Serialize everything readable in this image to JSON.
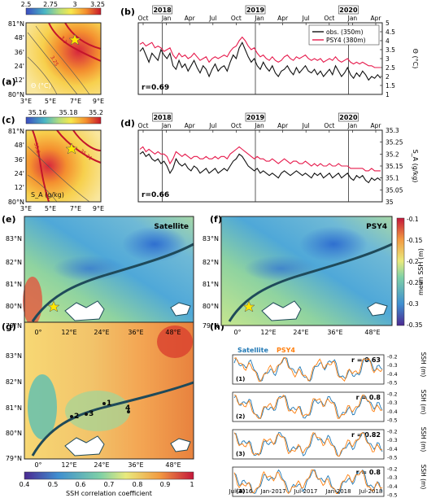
{
  "colors": {
    "obs": "#111111",
    "psy4": "#e6194b",
    "satellite": "#1f77b4",
    "psy4_ts": "#ff7f0e",
    "coast": "#1f4a5a"
  },
  "panel_letters": [
    "(a)",
    "(b)",
    "(c)",
    "(d)",
    "(e)",
    "(f)",
    "(g)",
    "(h)"
  ],
  "map_a": {
    "colorbar_ticks": [
      "2.5",
      "2.75",
      "3",
      "3.25"
    ],
    "lat_ticks": [
      "81°N",
      "48'",
      "36'",
      "24'",
      "12'",
      "80°N"
    ],
    "lon_ticks": [
      "3°E",
      "5°E",
      "7°E",
      "9°E"
    ],
    "var_label": "Θ (°C)",
    "contour_labels": [
      "3.25",
      "3.3"
    ]
  },
  "map_c": {
    "colorbar_ticks": [
      "35.16",
      "35.18",
      "35.2"
    ],
    "lat_ticks": [
      "81°N",
      "48'",
      "36'",
      "24'",
      "12'",
      "80°N"
    ],
    "lon_ticks": [
      "3°E",
      "5°E",
      "7°E",
      "9°E"
    ],
    "var_label": "S_A (g/kg)",
    "contour_labels": [
      "35.2",
      "35.21"
    ]
  },
  "panel_e": {
    "label": "Satellite"
  },
  "panel_f": {
    "label": "PSY4"
  },
  "polar_maps": {
    "lat_ticks": [
      "83°N",
      "82°N",
      "81°N",
      "80°N",
      "79°N"
    ],
    "lon_ticks": [
      "0°",
      "12°E",
      "24°E",
      "36°E",
      "48°E"
    ]
  },
  "ssh_colorbar": {
    "label": "mean SSH (m)",
    "ticks": [
      "-0.1",
      "-0.15",
      "-0.2",
      "-0.25",
      "-0.3",
      "-0.35"
    ]
  },
  "corr_colorbar": {
    "label": "SSH correlation coefficient",
    "ticks": [
      "0.4",
      "0.5",
      "0.6",
      "0.7",
      "0.8",
      "0.9",
      "1"
    ]
  },
  "point_labels": [
    "1",
    "2",
    "3",
    "4"
  ],
  "chart_data": [
    {
      "panel": "(b)",
      "type": "line",
      "x_labels": [
        "Oct",
        "Jan",
        "Apr",
        "Jul",
        "Oct",
        "Jan",
        "Apr",
        "Jul",
        "Oct",
        "Jan",
        "Apr"
      ],
      "year_labels": [
        "2018",
        "2019",
        "2020"
      ],
      "ylabel": "Θ (°C)",
      "ylim": [
        1,
        5
      ],
      "yticks": [
        "1",
        "1.5",
        "2",
        "2.5",
        "3",
        "3.5",
        "4",
        "4.5",
        "5"
      ],
      "annotation": "r=0.69",
      "series": [
        {
          "name": "obs. (350m)",
          "x": [
            0,
            1,
            2,
            3,
            4,
            5,
            6,
            7,
            8,
            9,
            10,
            11,
            12,
            13,
            14,
            15,
            16,
            17,
            18,
            19,
            20,
            21,
            22,
            23,
            24,
            25,
            26,
            27,
            28,
            29,
            30,
            31,
            32,
            33,
            34,
            35,
            36,
            37,
            38,
            39,
            40,
            41,
            42,
            43,
            44,
            45,
            46,
            47,
            48,
            49,
            50,
            51,
            52,
            53,
            54,
            55,
            56,
            57,
            58,
            59,
            60,
            61,
            62,
            63,
            64,
            65,
            66,
            67,
            68,
            69,
            70,
            71,
            72,
            73,
            74,
            75,
            76,
            77,
            78,
            79,
            80
          ],
          "values": [
            3.4,
            3.6,
            3.2,
            2.8,
            3.3,
            3.1,
            2.9,
            3.5,
            3.2,
            3.0,
            3.3,
            2.6,
            2.4,
            2.9,
            2.5,
            2.7,
            2.3,
            2.6,
            2.9,
            2.5,
            2.2,
            2.6,
            2.4,
            2.0,
            2.4,
            2.7,
            2.3,
            2.5,
            2.6,
            2.3,
            2.8,
            3.2,
            3.0,
            3.6,
            3.9,
            3.5,
            3.1,
            2.8,
            3.0,
            2.6,
            2.4,
            2.8,
            2.5,
            2.3,
            2.6,
            2.2,
            2.0,
            2.3,
            2.4,
            2.6,
            2.3,
            2.1,
            2.5,
            2.2,
            2.4,
            2.6,
            2.3,
            2.2,
            2.4,
            2.1,
            2.3,
            2.0,
            2.2,
            2.4,
            2.1,
            2.6,
            2.3,
            2.0,
            2.2,
            2.5,
            2.1,
            1.9,
            2.2,
            2.0,
            2.3,
            2.1,
            1.8,
            2.0,
            1.9,
            2.1,
            1.9
          ]
        },
        {
          "name": "PSY4 (380m)",
          "x": [
            0,
            1,
            2,
            3,
            4,
            5,
            6,
            7,
            8,
            9,
            10,
            11,
            12,
            13,
            14,
            15,
            16,
            17,
            18,
            19,
            20,
            21,
            22,
            23,
            24,
            25,
            26,
            27,
            28,
            29,
            30,
            31,
            32,
            33,
            34,
            35,
            36,
            37,
            38,
            39,
            40,
            41,
            42,
            43,
            44,
            45,
            46,
            47,
            48,
            49,
            50,
            51,
            52,
            53,
            54,
            55,
            56,
            57,
            58,
            59,
            60,
            61,
            62,
            63,
            64,
            65,
            66,
            67,
            68,
            69,
            70,
            71,
            72,
            73,
            74,
            75,
            76,
            77,
            78,
            79,
            80
          ],
          "values": [
            3.8,
            3.9,
            3.7,
            3.8,
            3.9,
            3.6,
            3.7,
            3.6,
            3.4,
            3.5,
            3.6,
            3.2,
            3.0,
            3.3,
            3.1,
            3.2,
            3.0,
            3.1,
            3.3,
            3.1,
            2.9,
            3.0,
            3.1,
            2.8,
            3.0,
            3.1,
            3.0,
            3.1,
            3.2,
            3.1,
            3.4,
            3.6,
            3.7,
            4.0,
            4.2,
            4.0,
            3.7,
            3.5,
            3.6,
            3.3,
            3.1,
            3.2,
            3.0,
            2.9,
            3.1,
            2.9,
            2.8,
            2.9,
            3.1,
            3.2,
            3.0,
            2.9,
            3.1,
            3.0,
            3.1,
            3.2,
            3.0,
            2.9,
            3.0,
            2.9,
            3.0,
            2.8,
            2.9,
            3.0,
            2.9,
            3.1,
            2.9,
            2.8,
            2.9,
            3.0,
            2.8,
            2.7,
            2.8,
            2.7,
            2.8,
            2.7,
            2.6,
            2.6,
            2.5,
            2.5,
            2.5
          ]
        }
      ]
    },
    {
      "panel": "(d)",
      "type": "line",
      "x_labels": [
        "Oct",
        "Jan",
        "Apr",
        "Jul",
        "Oct",
        "Jan",
        "Apr",
        "Jul",
        "Oct",
        "Jan",
        "Apr"
      ],
      "year_labels": [
        "2018",
        "2019",
        "2020"
      ],
      "ylabel": "S_A (g/kg)",
      "ylim": [
        35.0,
        35.3
      ],
      "yticks": [
        "35",
        "35.05",
        "35.1",
        "35.15",
        "35.2",
        "35.25",
        "35.3"
      ],
      "annotation": "r=0.66",
      "series": [
        {
          "name": "obs",
          "x": [
            0,
            1,
            2,
            3,
            4,
            5,
            6,
            7,
            8,
            9,
            10,
            11,
            12,
            13,
            14,
            15,
            16,
            17,
            18,
            19,
            20,
            21,
            22,
            23,
            24,
            25,
            26,
            27,
            28,
            29,
            30,
            31,
            32,
            33,
            34,
            35,
            36,
            37,
            38,
            39,
            40,
            41,
            42,
            43,
            44,
            45,
            46,
            47,
            48,
            49,
            50,
            51,
            52,
            53,
            54,
            55,
            56,
            57,
            58,
            59,
            60,
            61,
            62,
            63,
            64,
            65,
            66,
            67,
            68,
            69,
            70,
            71,
            72,
            73,
            74,
            75,
            76,
            77,
            78,
            79,
            80
          ],
          "values": [
            35.2,
            35.21,
            35.19,
            35.2,
            35.18,
            35.17,
            35.18,
            35.16,
            35.17,
            35.15,
            35.12,
            35.14,
            35.18,
            35.16,
            35.15,
            35.16,
            35.14,
            35.13,
            35.15,
            35.14,
            35.12,
            35.13,
            35.14,
            35.12,
            35.13,
            35.14,
            35.12,
            35.13,
            35.14,
            35.13,
            35.15,
            35.17,
            35.18,
            35.2,
            35.19,
            35.17,
            35.15,
            35.14,
            35.13,
            35.14,
            35.12,
            35.13,
            35.12,
            35.11,
            35.12,
            35.11,
            35.1,
            35.12,
            35.13,
            35.12,
            35.11,
            35.12,
            35.13,
            35.12,
            35.11,
            35.12,
            35.11,
            35.1,
            35.12,
            35.11,
            35.12,
            35.1,
            35.11,
            35.12,
            35.1,
            35.11,
            35.12,
            35.1,
            35.11,
            35.12,
            35.1,
            35.09,
            35.11,
            35.1,
            35.11,
            35.09,
            35.08,
            35.1,
            35.09,
            35.1,
            35.09
          ]
        },
        {
          "name": "PSY4",
          "x": [
            0,
            1,
            2,
            3,
            4,
            5,
            6,
            7,
            8,
            9,
            10,
            11,
            12,
            13,
            14,
            15,
            16,
            17,
            18,
            19,
            20,
            21,
            22,
            23,
            24,
            25,
            26,
            27,
            28,
            29,
            30,
            31,
            32,
            33,
            34,
            35,
            36,
            37,
            38,
            39,
            40,
            41,
            42,
            43,
            44,
            45,
            46,
            47,
            48,
            49,
            50,
            51,
            52,
            53,
            54,
            55,
            56,
            57,
            58,
            59,
            60,
            61,
            62,
            63,
            64,
            65,
            66,
            67,
            68,
            69,
            70,
            71,
            72,
            73,
            74,
            75,
            76,
            77,
            78,
            79,
            80
          ],
          "values": [
            35.22,
            35.23,
            35.21,
            35.22,
            35.21,
            35.2,
            35.21,
            35.2,
            35.2,
            35.19,
            35.16,
            35.18,
            35.21,
            35.2,
            35.19,
            35.2,
            35.19,
            35.18,
            35.19,
            35.19,
            35.18,
            35.18,
            35.19,
            35.18,
            35.18,
            35.19,
            35.18,
            35.19,
            35.19,
            35.18,
            35.2,
            35.21,
            35.22,
            35.23,
            35.22,
            35.21,
            35.2,
            35.19,
            35.18,
            35.19,
            35.18,
            35.18,
            35.17,
            35.17,
            35.18,
            35.17,
            35.16,
            35.17,
            35.18,
            35.17,
            35.16,
            35.17,
            35.17,
            35.16,
            35.16,
            35.17,
            35.16,
            35.15,
            35.16,
            35.15,
            35.16,
            35.15,
            35.15,
            35.16,
            35.15,
            35.15,
            35.16,
            35.15,
            35.15,
            35.15,
            35.14,
            35.14,
            35.14,
            35.14,
            35.14,
            35.13,
            35.13,
            35.14,
            35.13,
            35.13,
            35.13
          ]
        }
      ]
    },
    {
      "panel": "(h)",
      "type": "line",
      "legend": [
        "Satellite",
        "PSY4"
      ],
      "x_labels": [
        "Jul-2016",
        "Jan-2017",
        "Jul-2017",
        "Jan-2018",
        "Jul-2018"
      ],
      "ylabel": "SSH (m)",
      "yticks": [
        "-0.2",
        "-0.3",
        "-0.4",
        "-0.5"
      ],
      "subplots": [
        {
          "label": "(1)",
          "r": "r = 0.63"
        },
        {
          "label": "(2)",
          "r": "r = 0.8"
        },
        {
          "label": "(3)",
          "r": "r = 0.82"
        },
        {
          "label": "(4)",
          "r": "r = 0.8"
        }
      ]
    }
  ]
}
